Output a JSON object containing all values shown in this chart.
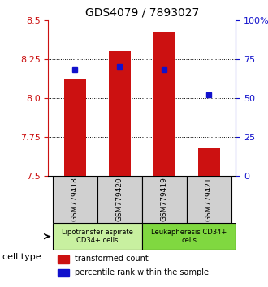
{
  "title": "GDS4079 / 7893027",
  "samples": [
    "GSM779418",
    "GSM779420",
    "GSM779419",
    "GSM779421"
  ],
  "transformed_counts": [
    8.12,
    8.3,
    8.42,
    7.68
  ],
  "percentile_ranks": [
    68,
    70,
    68,
    52
  ],
  "y_min": 7.5,
  "y_max": 8.5,
  "y_ticks": [
    7.5,
    7.75,
    8.0,
    8.25,
    8.5
  ],
  "y_right_ticks": [
    0,
    25,
    50,
    75,
    100
  ],
  "y_right_labels": [
    "0",
    "25",
    "50",
    "75",
    "100%"
  ],
  "bar_color": "#cc1111",
  "dot_color": "#1111cc",
  "bar_bottom": 7.5,
  "bar_width": 0.5,
  "groups": [
    {
      "label": "Lipotransfer aspirate\nCD34+ cells",
      "samples": [
        "GSM779418",
        "GSM779420"
      ],
      "color": "#d4f0c0"
    },
    {
      "label": "Leukapheresis CD34+\ncells",
      "samples": [
        "GSM779419",
        "GSM779421"
      ],
      "color": "#90e060"
    }
  ],
  "cell_type_label": "cell type",
  "legend_items": [
    {
      "color": "#cc1111",
      "label": "transformed count"
    },
    {
      "color": "#1111cc",
      "label": "percentile rank within the sample"
    }
  ],
  "left_axis_color": "#cc1111",
  "right_axis_color": "#1111cc",
  "background_color": "#ffffff",
  "plot_bg_color": "#ffffff",
  "sample_box_color": "#d0d0d0"
}
